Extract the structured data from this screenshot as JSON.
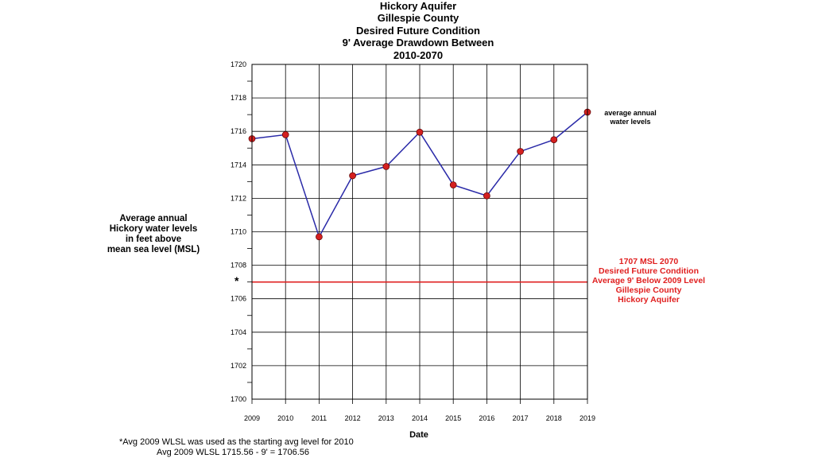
{
  "chart_data": {
    "type": "line",
    "title_lines": [
      "Hickory Aquifer",
      "Gillespie County",
      "Desired Future Condition",
      "9' Average Drawdown Between",
      "2010-2070"
    ],
    "xlabel": "Date",
    "ylabel_lines": [
      "Average annual",
      "Hickory water levels",
      "in feet above",
      "mean sea level (MSL)"
    ],
    "x": [
      2009,
      2010,
      2011,
      2012,
      2013,
      2014,
      2015,
      2016,
      2017,
      2018,
      2019
    ],
    "xlim": [
      2009,
      2019
    ],
    "ylim": [
      1700,
      1720
    ],
    "y_major_ticks": [
      1700,
      1702,
      1704,
      1706,
      1708,
      1710,
      1712,
      1714,
      1716,
      1718,
      1720
    ],
    "grid": true,
    "series": [
      {
        "name": "average annual water levels",
        "name_lines": [
          "average annual",
          "water levels"
        ],
        "values": [
          1715.56,
          1715.8,
          1709.7,
          1713.35,
          1713.9,
          1715.95,
          1712.8,
          1712.15,
          1714.8,
          1715.5,
          1717.15
        ],
        "line_color": "#2a2aa8",
        "marker_color": "#d42020"
      }
    ],
    "reference_line": {
      "value": 1707,
      "marker": "*",
      "color": "#e02020",
      "label_lines": [
        "1707 MSL 2070",
        "Desired Future Condition",
        "Average 9' Below 2009 Level",
        "Gillespie County",
        "Hickory Aquifer"
      ]
    },
    "footnote_lines": [
      "*Avg 2009 WLSL was used as the starting avg level for 2010",
      "Avg 2009 WLSL 1715.56 - 9' = 1706.56"
    ]
  }
}
